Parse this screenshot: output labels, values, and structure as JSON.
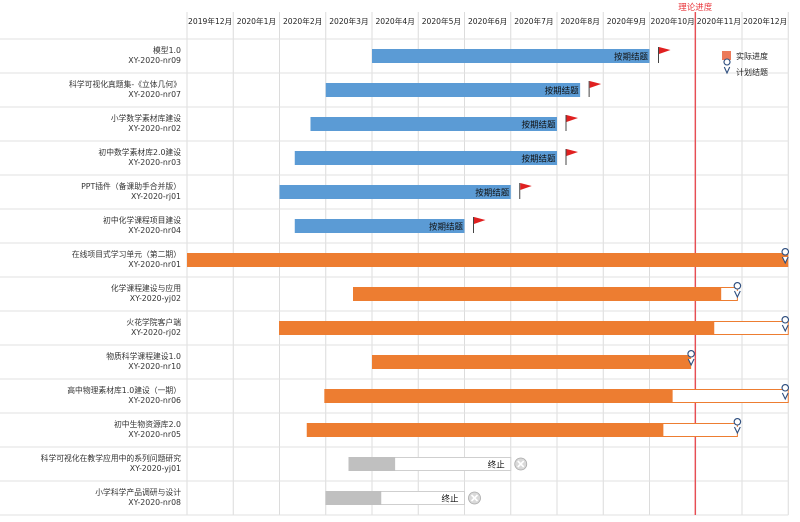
{
  "chart_data": {
    "type": "gantt",
    "title": "",
    "months": [
      "2019年12月",
      "2020年1月",
      "2020年2月",
      "2020年3月",
      "2020年4月",
      "2020年5月",
      "2020年6月",
      "2020年7月",
      "2020年8月",
      "2020年9月",
      "2020年10月",
      "2020年11月",
      "2020年12月"
    ],
    "reference": {
      "label": "理论进度",
      "month": 11.0,
      "color": "#e8353b"
    },
    "legend": {
      "actual": "实际进度",
      "planned": "计划结题",
      "position": "top-right"
    },
    "colors": {
      "blue": "#5b9bd5",
      "orange": "#ed7d31",
      "gray": "#c0c0c0",
      "flag": "#e02020",
      "pin": "#2f4f7f"
    },
    "tasks": [
      {
        "name": "模型1.0",
        "code": "XY-2020-nr09",
        "status": "completed",
        "start": 4.0,
        "end": 10.0,
        "label": "按期结题"
      },
      {
        "name": "科学可视化真题集-《立体几何》",
        "code": "XY-2020-nr07",
        "status": "completed",
        "start": 3.0,
        "end": 8.5,
        "label": "按期结题"
      },
      {
        "name": "小学数学素材库建设",
        "code": "XY-2020-nr02",
        "status": "completed",
        "start": 2.67,
        "end": 8.0,
        "label": "按期结题"
      },
      {
        "name": "初中数学素材库2.0建设",
        "code": "XY-2020-nr03",
        "status": "completed",
        "start": 2.33,
        "end": 8.0,
        "label": "按期结题"
      },
      {
        "name": "PPT插件（备课助手合并版）",
        "code": "XY-2020-rj01",
        "status": "completed",
        "start": 2.0,
        "end": 7.0,
        "label": "按期结题"
      },
      {
        "name": "初中化学课程项目建设",
        "code": "XY-2020-nr04",
        "status": "completed",
        "start": 2.33,
        "end": 6.0,
        "label": "按期结题"
      },
      {
        "name": "在线项目式学习单元（第二期）",
        "code": "XY-2020-nr01",
        "status": "ongoing",
        "start": 0.0,
        "end": 13.0,
        "plan_end": 13.0
      },
      {
        "name": "化学课程建设与应用",
        "code": "XY-2020-yj02",
        "status": "ongoing",
        "start": 3.6,
        "end": 11.55,
        "plan_end": 11.9
      },
      {
        "name": "火花学院客户端",
        "code": "XY-2020-rj02",
        "status": "ongoing",
        "start": 2.0,
        "end": 11.4,
        "plan_end": 13.0
      },
      {
        "name": "物质科学课程建设1.0",
        "code": "XY-2020-nr10",
        "status": "ongoing",
        "start": 4.0,
        "end": 10.9,
        "plan_end": 10.9
      },
      {
        "name": "高中物理素材库1.0建设（一期）",
        "code": "XY-2020-nr06",
        "status": "ongoing",
        "start": 2.98,
        "end": 10.5,
        "plan_end": 13.0
      },
      {
        "name": "初中生物资源库2.0",
        "code": "XY-2020-nr05",
        "status": "ongoing",
        "start": 2.6,
        "end": 10.3,
        "plan_end": 11.9
      },
      {
        "name": "科学可视化在教学应用中的系列问题研究",
        "code": "XY-2020-yj01",
        "status": "terminated",
        "start": 3.5,
        "end": 4.5,
        "plan_end": 7.0,
        "label": "终止"
      },
      {
        "name": "小学科学产品调研与设计",
        "code": "XY-2020-nr08",
        "status": "terminated",
        "start": 3.0,
        "end": 4.2,
        "plan_end": 6.0,
        "label": "终止"
      }
    ]
  }
}
